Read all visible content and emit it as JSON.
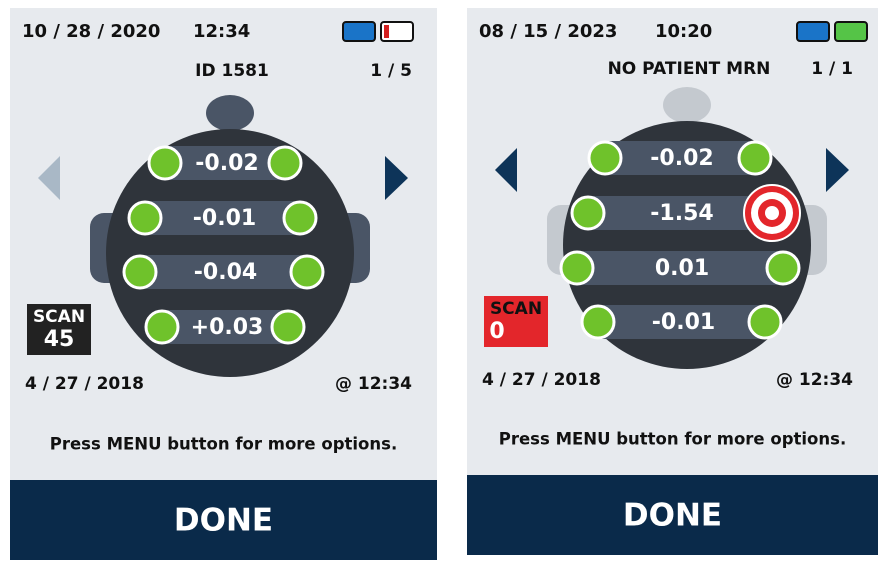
{
  "panels": [
    {
      "date": "10 / 28 / 2020",
      "time": "12:34",
      "patient": "ID 1581",
      "page": "1 / 5",
      "readings": [
        "-0.02",
        "-0.01",
        "-0.04",
        "+0.03"
      ],
      "scan_label": "SCAN",
      "scan_number": "45",
      "scan_date": "4 / 27 / 2018",
      "scan_time": "@ 12:34",
      "instruction": "Press MENU button for more options.",
      "button": "DONE"
    },
    {
      "date": "08 / 15 / 2023",
      "time": "10:20",
      "patient": "NO PATIENT MRN",
      "page": "1 / 1",
      "readings": [
        "-0.02",
        "-1.54",
        "0.01",
        "-0.01"
      ],
      "scan_label": "SCAN",
      "scan_number": "0",
      "scan_date": "4 / 27 / 2018",
      "scan_time": "@ 12:34",
      "instruction": "Press MENU button for more options.",
      "button": "DONE"
    }
  ]
}
